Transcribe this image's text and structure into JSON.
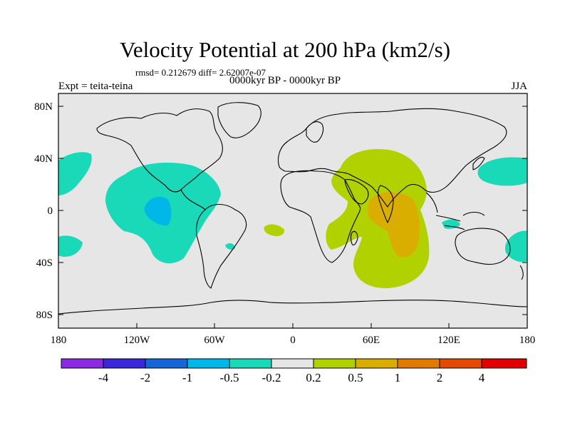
{
  "title": "Velocity Potential at 200 hPa (km2/s)",
  "stats_line": "rmsd= 0.212679 diff= 2.62007e-07",
  "left_label": "Expt = teita-teina",
  "center_label": "0000kyr BP - 0000kyr BP",
  "right_label": "JJA",
  "lat_ticks": [
    "80N",
    "40N",
    "0",
    "40S",
    "80S"
  ],
  "lon_ticks": [
    "180",
    "120W",
    "60W",
    "0",
    "60E",
    "120E",
    "180"
  ],
  "colorbar": {
    "labels": [
      "-4",
      "-2",
      "-1",
      "-0.5",
      "-0.2",
      "0.2",
      "0.5",
      "1",
      "2",
      "4"
    ],
    "colors": [
      "#8a2be2",
      "#3a28d8",
      "#1565d6",
      "#00b8e8",
      "#19d9b9",
      "#e6e6e6",
      "#b2d200",
      "#d9ae00",
      "#e07b00",
      "#e24a00",
      "#e00000"
    ]
  },
  "colors": {
    "land_outline": "#000000",
    "background": "#e6e6e6",
    "neg_small": "#19d9b9",
    "neg_medium": "#00b8e8",
    "pos_small": "#b2d200",
    "pos_medium": "#d9ae00"
  }
}
